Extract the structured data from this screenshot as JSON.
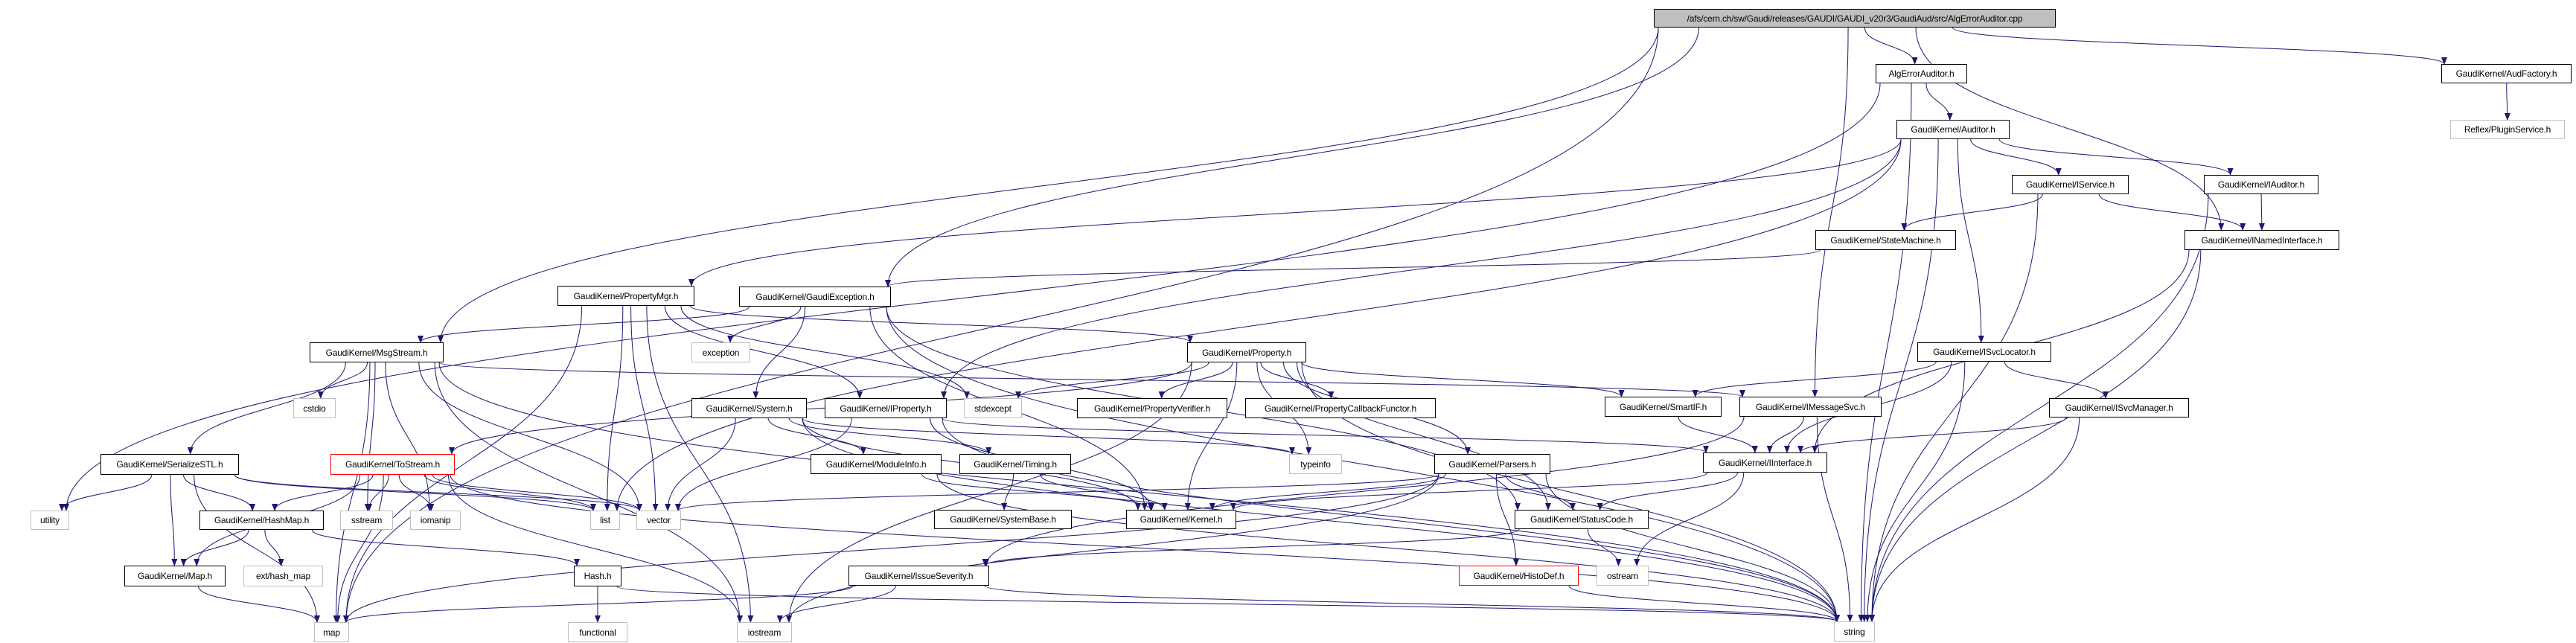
{
  "graph": {
    "colors": {
      "edge": "#191970",
      "root_fill": "#bfbfbf",
      "documented_border": "#000000",
      "external_border": "#bfbfbf",
      "undocumented_border": "#ff0000"
    },
    "nodes": [
      {
        "id": "root",
        "label": "/afs/cern.ch/sw/Gaudi/releases/GAUDI/GAUDI_v20r3/GaudiAud/src/AlgErrorAuditor.cpp",
        "kind": "root"
      },
      {
        "id": "algerr",
        "label": "AlgErrorAuditor.h",
        "kind": "documented"
      },
      {
        "id": "audfac",
        "label": "GaudiKernel/AudFactory.h",
        "kind": "documented"
      },
      {
        "id": "plugin",
        "label": "Reflex/PluginService.h",
        "kind": "external"
      },
      {
        "id": "auditor",
        "label": "GaudiKernel/Auditor.h",
        "kind": "documented"
      },
      {
        "id": "iservice",
        "label": "GaudiKernel/IService.h",
        "kind": "documented"
      },
      {
        "id": "iauditor",
        "label": "GaudiKernel/IAuditor.h",
        "kind": "documented"
      },
      {
        "id": "statemach",
        "label": "GaudiKernel/StateMachine.h",
        "kind": "documented"
      },
      {
        "id": "inamed",
        "label": "GaudiKernel/INamedInterface.h",
        "kind": "documented"
      },
      {
        "id": "propmgr",
        "label": "GaudiKernel/PropertyMgr.h",
        "kind": "documented"
      },
      {
        "id": "gexc",
        "label": "GaudiKernel/GaudiException.h",
        "kind": "documented"
      },
      {
        "id": "msgstream",
        "label": "GaudiKernel/MsgStream.h",
        "kind": "documented"
      },
      {
        "id": "exception",
        "label": "exception",
        "kind": "external"
      },
      {
        "id": "property",
        "label": "GaudiKernel/Property.h",
        "kind": "documented"
      },
      {
        "id": "isvcloc",
        "label": "GaudiKernel/ISvcLocator.h",
        "kind": "documented"
      },
      {
        "id": "cstdio",
        "label": "cstdio",
        "kind": "external"
      },
      {
        "id": "system",
        "label": "GaudiKernel/System.h",
        "kind": "documented"
      },
      {
        "id": "iproperty",
        "label": "GaudiKernel/IProperty.h",
        "kind": "documented"
      },
      {
        "id": "stdexcept",
        "label": "stdexcept",
        "kind": "external"
      },
      {
        "id": "propverif",
        "label": "GaudiKernel/PropertyVerifier.h",
        "kind": "documented"
      },
      {
        "id": "propcb",
        "label": "GaudiKernel/PropertyCallbackFunctor.h",
        "kind": "documented"
      },
      {
        "id": "smartif",
        "label": "GaudiKernel/SmartIF.h",
        "kind": "documented"
      },
      {
        "id": "imsgsvc",
        "label": "GaudiKernel/IMessageSvc.h",
        "kind": "documented"
      },
      {
        "id": "isvcmgr",
        "label": "GaudiKernel/ISvcManager.h",
        "kind": "documented"
      },
      {
        "id": "serstl",
        "label": "GaudiKernel/SerializeSTL.h",
        "kind": "documented"
      },
      {
        "id": "tostream",
        "label": "GaudiKernel/ToStream.h",
        "kind": "undocumented"
      },
      {
        "id": "moduleinfo",
        "label": "GaudiKernel/ModuleInfo.h",
        "kind": "documented"
      },
      {
        "id": "timing",
        "label": "GaudiKernel/Timing.h",
        "kind": "documented"
      },
      {
        "id": "typeinfo",
        "label": "typeinfo",
        "kind": "external"
      },
      {
        "id": "parsers",
        "label": "GaudiKernel/Parsers.h",
        "kind": "documented"
      },
      {
        "id": "iinterface",
        "label": "GaudiKernel/IInterface.h",
        "kind": "documented"
      },
      {
        "id": "utility",
        "label": "utility",
        "kind": "external"
      },
      {
        "id": "hashmap",
        "label": "GaudiKernel/HashMap.h",
        "kind": "documented"
      },
      {
        "id": "sstream",
        "label": "sstream",
        "kind": "external"
      },
      {
        "id": "iomanip",
        "label": "iomanip",
        "kind": "external"
      },
      {
        "id": "list",
        "label": "list",
        "kind": "external"
      },
      {
        "id": "vector",
        "label": "vector",
        "kind": "external"
      },
      {
        "id": "systembase",
        "label": "GaudiKernel/SystemBase.h",
        "kind": "documented"
      },
      {
        "id": "kernel",
        "label": "GaudiKernel/Kernel.h",
        "kind": "documented"
      },
      {
        "id": "statuscode",
        "label": "GaudiKernel/StatusCode.h",
        "kind": "documented"
      },
      {
        "id": "mapH",
        "label": "GaudiKernel/Map.h",
        "kind": "documented"
      },
      {
        "id": "exthash",
        "label": "ext/hash_map",
        "kind": "external"
      },
      {
        "id": "hashH",
        "label": "Hash.h",
        "kind": "documented"
      },
      {
        "id": "issuesev",
        "label": "GaudiKernel/IssueSeverity.h",
        "kind": "documented"
      },
      {
        "id": "histodef",
        "label": "GaudiKernel/HistoDef.h",
        "kind": "undocumented"
      },
      {
        "id": "ostream",
        "label": "ostream",
        "kind": "external"
      },
      {
        "id": "map",
        "label": "map",
        "kind": "external"
      },
      {
        "id": "functional",
        "label": "functional",
        "kind": "external"
      },
      {
        "id": "iostream",
        "label": "iostream",
        "kind": "external"
      },
      {
        "id": "string",
        "label": "string",
        "kind": "external"
      }
    ],
    "edges": [
      [
        "root",
        "algerr"
      ],
      [
        "root",
        "audfac"
      ],
      [
        "root",
        "msgstream"
      ],
      [
        "root",
        "gexc"
      ],
      [
        "root",
        "imsgsvc"
      ],
      [
        "root",
        "inamed"
      ],
      [
        "root",
        "map"
      ],
      [
        "algerr",
        "auditor"
      ],
      [
        "algerr",
        "string"
      ],
      [
        "algerr",
        "utility"
      ],
      [
        "audfac",
        "plugin"
      ],
      [
        "auditor",
        "iservice"
      ],
      [
        "auditor",
        "iauditor"
      ],
      [
        "auditor",
        "propmgr"
      ],
      [
        "auditor",
        "isvcloc"
      ],
      [
        "auditor",
        "iproperty"
      ],
      [
        "auditor",
        "string"
      ],
      [
        "auditor",
        "list"
      ],
      [
        "iservice",
        "statemach"
      ],
      [
        "iservice",
        "inamed"
      ],
      [
        "iservice",
        "string"
      ],
      [
        "iauditor",
        "inamed"
      ],
      [
        "iauditor",
        "string"
      ],
      [
        "statemach",
        "gexc"
      ],
      [
        "inamed",
        "iinterface"
      ],
      [
        "inamed",
        "string"
      ],
      [
        "isvcloc",
        "iinterface"
      ],
      [
        "isvcloc",
        "isvcmgr"
      ],
      [
        "isvcloc",
        "string"
      ],
      [
        "isvcloc",
        "smartif"
      ],
      [
        "isvcmgr",
        "iinterface"
      ],
      [
        "isvcmgr",
        "string"
      ],
      [
        "imsgsvc",
        "iinterface"
      ],
      [
        "imsgsvc",
        "string"
      ],
      [
        "imsgsvc",
        "issuesev"
      ],
      [
        "smartif",
        "iinterface"
      ],
      [
        "iinterface",
        "kernel"
      ],
      [
        "iinterface",
        "statuscode"
      ],
      [
        "iinterface",
        "ostream"
      ],
      [
        "statuscode",
        "ostream"
      ],
      [
        "statuscode",
        "issuesev"
      ],
      [
        "issuesev",
        "iostream"
      ],
      [
        "issuesev",
        "map"
      ],
      [
        "issuesev",
        "string"
      ],
      [
        "histodef",
        "string"
      ],
      [
        "parsers",
        "vector"
      ],
      [
        "parsers",
        "map"
      ],
      [
        "parsers",
        "string"
      ],
      [
        "parsers",
        "statuscode"
      ],
      [
        "parsers",
        "histodef"
      ],
      [
        "parsers",
        "kernel"
      ],
      [
        "parsers",
        "iostream"
      ],
      [
        "property",
        "propverif"
      ],
      [
        "property",
        "propcb"
      ],
      [
        "property",
        "stdexcept"
      ],
      [
        "property",
        "typeinfo"
      ],
      [
        "property",
        "kernel"
      ],
      [
        "property",
        "string"
      ],
      [
        "property",
        "parsers"
      ],
      [
        "property",
        "tostream"
      ],
      [
        "property",
        "statuscode"
      ],
      [
        "property",
        "iostream"
      ],
      [
        "property",
        "smartif"
      ],
      [
        "iproperty",
        "iinterface"
      ],
      [
        "iproperty",
        "string"
      ],
      [
        "iproperty",
        "vector"
      ],
      [
        "iproperty",
        "kernel"
      ],
      [
        "propmgr",
        "property"
      ],
      [
        "propmgr",
        "vector"
      ],
      [
        "propmgr",
        "list"
      ],
      [
        "propmgr",
        "iostream"
      ],
      [
        "propmgr",
        "iproperty"
      ],
      [
        "propmgr",
        "map"
      ],
      [
        "propmgr",
        "stdexcept"
      ],
      [
        "gexc",
        "msgstream"
      ],
      [
        "gexc",
        "exception"
      ],
      [
        "gexc",
        "system"
      ],
      [
        "gexc",
        "string"
      ],
      [
        "gexc",
        "statuscode"
      ],
      [
        "gexc",
        "kernel"
      ],
      [
        "msgstream",
        "serstl"
      ],
      [
        "msgstream",
        "cstdio"
      ],
      [
        "msgstream",
        "sstream"
      ],
      [
        "msgstream",
        "iomanip"
      ],
      [
        "msgstream",
        "vector"
      ],
      [
        "msgstream",
        "string"
      ],
      [
        "msgstream",
        "iostream"
      ],
      [
        "msgstream",
        "imsgsvc"
      ],
      [
        "msgstream",
        "map"
      ],
      [
        "serstl",
        "utility"
      ],
      [
        "serstl",
        "hashmap"
      ],
      [
        "serstl",
        "mapH"
      ],
      [
        "serstl",
        "map"
      ],
      [
        "serstl",
        "vector"
      ],
      [
        "serstl",
        "list"
      ],
      [
        "tostream",
        "hashmap"
      ],
      [
        "tostream",
        "mapH"
      ],
      [
        "tostream",
        "sstream"
      ],
      [
        "tostream",
        "iomanip"
      ],
      [
        "tostream",
        "list"
      ],
      [
        "tostream",
        "vector"
      ],
      [
        "tostream",
        "map"
      ],
      [
        "tostream",
        "iostream"
      ],
      [
        "tostream",
        "string"
      ],
      [
        "hashmap",
        "mapH"
      ],
      [
        "hashmap",
        "exthash"
      ],
      [
        "hashmap",
        "hashH"
      ],
      [
        "mapH",
        "map"
      ],
      [
        "hashH",
        "functional"
      ],
      [
        "hashH",
        "string"
      ],
      [
        "system",
        "moduleinfo"
      ],
      [
        "system",
        "timing"
      ],
      [
        "system",
        "kernel"
      ],
      [
        "system",
        "vector"
      ],
      [
        "system",
        "string"
      ],
      [
        "system",
        "typeinfo"
      ],
      [
        "moduleinfo",
        "kernel"
      ],
      [
        "moduleinfo",
        "string"
      ],
      [
        "timing",
        "systembase"
      ],
      [
        "timing",
        "kernel"
      ]
    ]
  }
}
